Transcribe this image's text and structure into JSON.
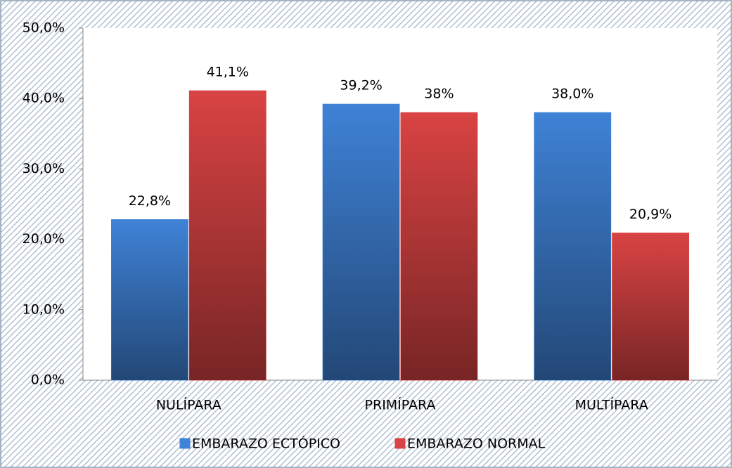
{
  "chart_data": {
    "type": "bar",
    "categories": [
      "NULÍPARA",
      "PRIMÍPARA",
      "MULTÍPARA"
    ],
    "series": [
      {
        "name": "EMBARAZO ECTÓPICO",
        "color": "#3f82d6",
        "values": [
          22.8,
          39.2,
          38.0
        ],
        "value_labels": [
          "22,8%",
          "39,2%",
          "38,0%"
        ]
      },
      {
        "name": "EMBARAZO NORMAL",
        "color": "#d94343",
        "values": [
          41.1,
          38,
          20.9
        ],
        "value_labels": [
          "41,1%",
          "38%",
          "20,9%"
        ]
      }
    ],
    "ylim": [
      0,
      50
    ],
    "yticks": [
      {
        "value": 0,
        "label": "0,0%"
      },
      {
        "value": 10,
        "label": "10,0%"
      },
      {
        "value": 20,
        "label": "20,0%"
      },
      {
        "value": 30,
        "label": "30,0%"
      },
      {
        "value": 40,
        "label": "40,0%"
      },
      {
        "value": 50,
        "label": "50,0%"
      }
    ],
    "grid": false,
    "legend": "bottom"
  }
}
